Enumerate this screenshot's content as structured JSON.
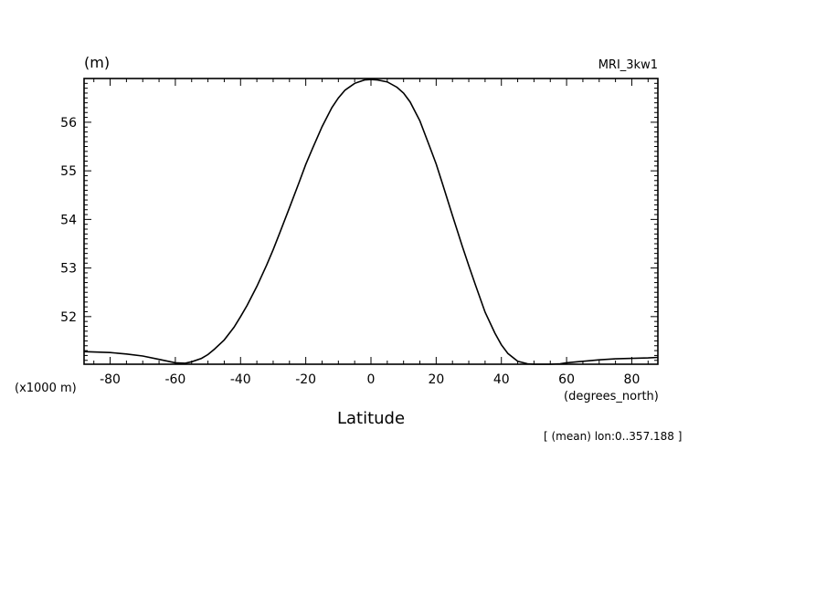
{
  "chart_data": {
    "type": "line",
    "title": "",
    "unit_label": "(m)",
    "model_label": "MRI_3kw1",
    "scale_label": "(x1000 m)",
    "xlabel": "Latitude",
    "xunit_label": "(degrees_north)",
    "footnote": "[ (mean) lon:0..357.188 ]",
    "xlim": [
      -88,
      88
    ],
    "ylim": [
      51.02,
      56.9
    ],
    "xticks": [
      -80,
      -60,
      -40,
      -20,
      0,
      20,
      40,
      60,
      80
    ],
    "xtick_labels": [
      "-80",
      "-60",
      "-40",
      "-20",
      "0",
      "20",
      "40",
      "60",
      "80"
    ],
    "yticks": [
      52,
      53,
      54,
      55,
      56
    ],
    "ytick_labels": [
      "52",
      "53",
      "54",
      "55",
      "56"
    ],
    "grid": false,
    "series": [
      {
        "x": [
          -88,
          -80,
          -75,
          -70,
          -65,
          -60,
          -57,
          -55,
          -52,
          -50,
          -48,
          -45,
          -42,
          -40,
          -38,
          -35,
          -32,
          -30,
          -28,
          -25,
          -22,
          -20,
          -18,
          -15,
          -12,
          -10,
          -8,
          -5,
          -2,
          0,
          2,
          5,
          8,
          10,
          12,
          15,
          18,
          20,
          22,
          25,
          28,
          30,
          32,
          35,
          38,
          40,
          42,
          45,
          48,
          50,
          52,
          55,
          58,
          60,
          65,
          70,
          75,
          80,
          85,
          88
        ],
        "values": [
          51.28,
          51.26,
          51.23,
          51.19,
          51.12,
          51.05,
          51.04,
          51.07,
          51.14,
          51.22,
          51.33,
          51.52,
          51.78,
          52.0,
          52.23,
          52.62,
          53.06,
          53.38,
          53.72,
          54.24,
          54.77,
          55.13,
          55.45,
          55.91,
          56.3,
          56.5,
          56.66,
          56.8,
          56.87,
          56.88,
          56.87,
          56.83,
          56.72,
          56.6,
          56.42,
          56.03,
          55.5,
          55.14,
          54.72,
          54.08,
          53.45,
          53.05,
          52.66,
          52.09,
          51.66,
          51.42,
          51.24,
          51.08,
          51.03,
          51.02,
          51.02,
          51.02,
          51.03,
          51.05,
          51.08,
          51.11,
          51.13,
          51.14,
          51.15,
          51.16
        ]
      }
    ]
  }
}
